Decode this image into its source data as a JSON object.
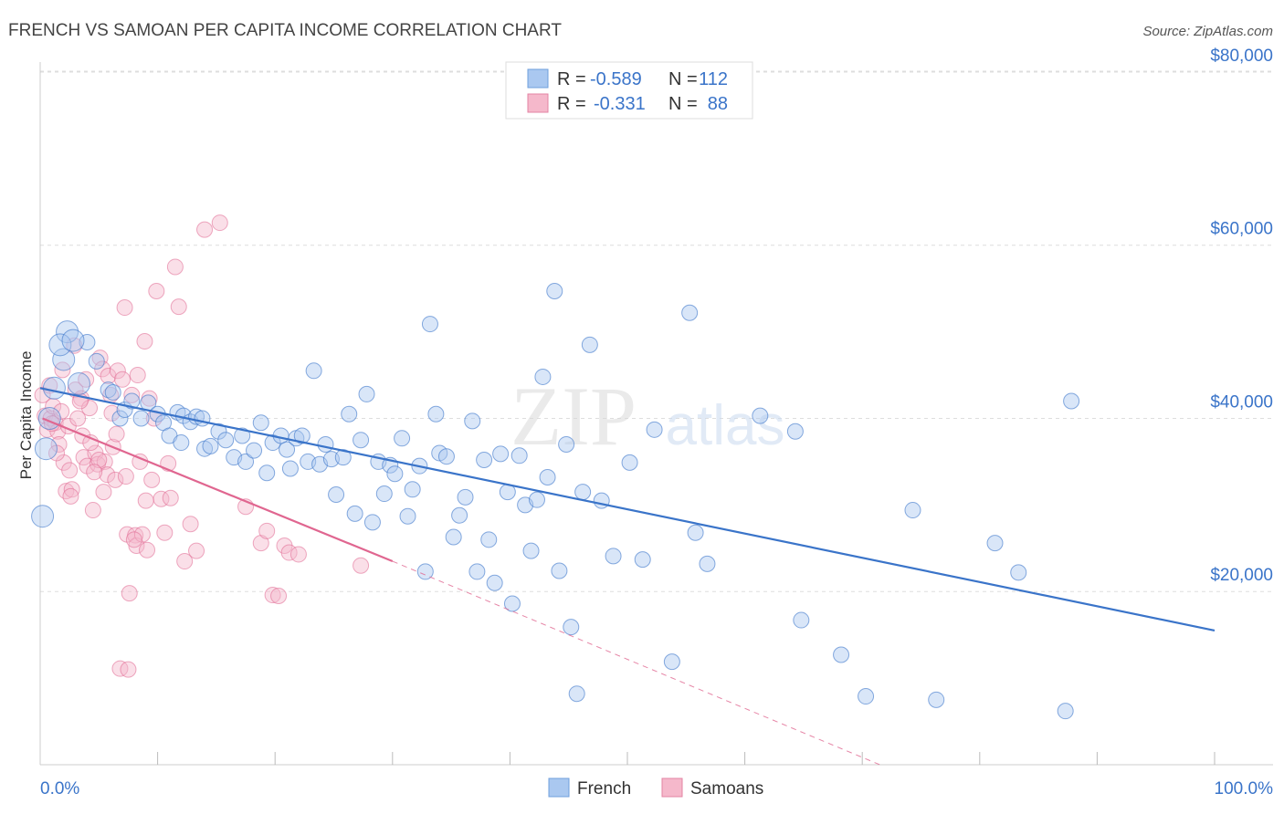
{
  "header": {
    "title": "FRENCH VS SAMOAN PER CAPITA INCOME CORRELATION CHART",
    "source": "Source: ZipAtlas.com"
  },
  "watermark": {
    "zip": "ZIP",
    "atlas": "atlas"
  },
  "legend_top": {
    "rows": [
      {
        "r_label": "R =",
        "r_value": "-0.589",
        "n_label": "N =",
        "n_value": "112",
        "color": "#aac8f0"
      },
      {
        "r_label": "R =",
        "r_value": "-0.331",
        "n_label": "N =",
        "n_value": "88",
        "color": "#f5b8cb"
      }
    ]
  },
  "legend_bottom": {
    "french": "French",
    "samoans": "Samoans"
  },
  "chart_data": {
    "type": "scatter",
    "title": "FRENCH VS SAMOAN PER CAPITA INCOME CORRELATION CHART",
    "ylabel": "Per Capita Income",
    "xlabel": "",
    "x_tick_labels": [
      "0.0%",
      "100.0%"
    ],
    "y_tick_labels": [
      "$20,000",
      "$40,000",
      "$60,000",
      "$80,000"
    ],
    "y_ticks": [
      20000,
      40000,
      60000,
      80000
    ],
    "xlim": [
      0,
      100
    ],
    "ylim": [
      0,
      82000
    ],
    "grid": true,
    "legend_position": "top-center",
    "colors": {
      "french": "#3a74c9",
      "samoans": "#e06690",
      "french_fill": "#aac8f0",
      "samoans_fill": "#f5b8cb"
    },
    "series": [
      {
        "name": "French",
        "r": -0.589,
        "n": 112,
        "trend": {
          "x": [
            0,
            100
          ],
          "y": [
            43500,
            15500
          ]
        },
        "points": [
          [
            0.2,
            28700
          ],
          [
            0.5,
            36500
          ],
          [
            0.8,
            40000
          ],
          [
            1.2,
            43500
          ],
          [
            2.0,
            46800
          ],
          [
            2.3,
            50000
          ],
          [
            1.7,
            48500
          ],
          [
            4.0,
            48800
          ],
          [
            4.8,
            46600
          ],
          [
            5.8,
            43300
          ],
          [
            6.2,
            43000
          ],
          [
            6.8,
            40000
          ],
          [
            7.2,
            41000
          ],
          [
            7.8,
            42000
          ],
          [
            8.6,
            40000
          ],
          [
            9.2,
            41800
          ],
          [
            10.0,
            40500
          ],
          [
            10.5,
            39500
          ],
          [
            11.0,
            38000
          ],
          [
            11.7,
            40700
          ],
          [
            12.2,
            40300
          ],
          [
            12.8,
            39600
          ],
          [
            12.0,
            37200
          ],
          [
            13.3,
            40200
          ],
          [
            13.8,
            40000
          ],
          [
            14.0,
            36500
          ],
          [
            14.5,
            36800
          ],
          [
            15.2,
            38500
          ],
          [
            15.8,
            37500
          ],
          [
            16.5,
            35500
          ],
          [
            17.2,
            38000
          ],
          [
            17.5,
            35000
          ],
          [
            18.2,
            36300
          ],
          [
            18.8,
            39500
          ],
          [
            19.3,
            33700
          ],
          [
            19.8,
            37200
          ],
          [
            20.5,
            38000
          ],
          [
            21.0,
            36400
          ],
          [
            21.3,
            34200
          ],
          [
            21.8,
            37700
          ],
          [
            22.3,
            38000
          ],
          [
            22.8,
            35000
          ],
          [
            23.3,
            45500
          ],
          [
            23.8,
            34700
          ],
          [
            24.3,
            37000
          ],
          [
            24.8,
            35300
          ],
          [
            25.2,
            31200
          ],
          [
            25.8,
            35500
          ],
          [
            26.3,
            40500
          ],
          [
            26.8,
            29000
          ],
          [
            27.3,
            37500
          ],
          [
            27.8,
            42800
          ],
          [
            28.3,
            28000
          ],
          [
            28.8,
            35000
          ],
          [
            29.3,
            31300
          ],
          [
            29.8,
            34600
          ],
          [
            30.2,
            33600
          ],
          [
            30.8,
            37700
          ],
          [
            31.3,
            28700
          ],
          [
            31.7,
            31800
          ],
          [
            32.3,
            34500
          ],
          [
            32.8,
            22300
          ],
          [
            33.2,
            50900
          ],
          [
            33.7,
            40500
          ],
          [
            34.0,
            36000
          ],
          [
            34.6,
            35600
          ],
          [
            35.2,
            26300
          ],
          [
            35.7,
            28800
          ],
          [
            36.2,
            30900
          ],
          [
            36.8,
            39700
          ],
          [
            37.2,
            22300
          ],
          [
            37.8,
            35200
          ],
          [
            38.2,
            26000
          ],
          [
            38.7,
            21000
          ],
          [
            39.2,
            35900
          ],
          [
            39.8,
            31500
          ],
          [
            40.2,
            18600
          ],
          [
            40.8,
            35700
          ],
          [
            41.3,
            30000
          ],
          [
            41.8,
            24700
          ],
          [
            42.3,
            30600
          ],
          [
            42.8,
            44800
          ],
          [
            43.2,
            33200
          ],
          [
            43.8,
            54700
          ],
          [
            44.2,
            22400
          ],
          [
            44.8,
            37000
          ],
          [
            45.2,
            15900
          ],
          [
            45.7,
            8200
          ],
          [
            46.2,
            31500
          ],
          [
            46.8,
            48500
          ],
          [
            47.8,
            30500
          ],
          [
            48.8,
            24100
          ],
          [
            50.2,
            34900
          ],
          [
            51.3,
            23700
          ],
          [
            52.3,
            38700
          ],
          [
            53.8,
            11900
          ],
          [
            55.3,
            52200
          ],
          [
            55.8,
            26800
          ],
          [
            56.8,
            23200
          ],
          [
            61.3,
            40300
          ],
          [
            64.3,
            38500
          ],
          [
            64.8,
            16700
          ],
          [
            68.2,
            12700
          ],
          [
            70.3,
            7900
          ],
          [
            74.3,
            29400
          ],
          [
            76.3,
            7500
          ],
          [
            81.3,
            25600
          ],
          [
            83.3,
            22200
          ],
          [
            87.3,
            6200
          ],
          [
            87.8,
            42000
          ],
          [
            2.8,
            49000
          ],
          [
            3.3,
            44000
          ]
        ]
      },
      {
        "name": "Samoans",
        "r": -0.331,
        "n": 88,
        "trend_solid": {
          "x": [
            0.2,
            30.0
          ],
          "y": [
            40000,
            23500
          ]
        },
        "trend_dashed": {
          "x": [
            30.0,
            71.5
          ],
          "y": [
            23500,
            0
          ]
        },
        "points": [
          [
            0.2,
            42700
          ],
          [
            0.4,
            40300
          ],
          [
            0.6,
            38700
          ],
          [
            0.9,
            40000
          ],
          [
            1.1,
            41400
          ],
          [
            1.3,
            39500
          ],
          [
            1.5,
            38500
          ],
          [
            1.6,
            37000
          ],
          [
            1.8,
            40800
          ],
          [
            2.0,
            34900
          ],
          [
            2.2,
            31600
          ],
          [
            2.4,
            39100
          ],
          [
            2.7,
            31800
          ],
          [
            2.9,
            48400
          ],
          [
            3.0,
            43300
          ],
          [
            3.2,
            40000
          ],
          [
            3.5,
            42300
          ],
          [
            3.7,
            35500
          ],
          [
            3.9,
            44500
          ],
          [
            4.0,
            34500
          ],
          [
            4.2,
            41200
          ],
          [
            4.5,
            29400
          ],
          [
            4.7,
            36000
          ],
          [
            4.9,
            34700
          ],
          [
            5.1,
            47000
          ],
          [
            5.3,
            45700
          ],
          [
            5.5,
            35000
          ],
          [
            5.7,
            33500
          ],
          [
            5.8,
            44900
          ],
          [
            6.0,
            42700
          ],
          [
            6.2,
            36700
          ],
          [
            6.4,
            32900
          ],
          [
            6.6,
            45500
          ],
          [
            6.8,
            11100
          ],
          [
            7.0,
            44500
          ],
          [
            7.2,
            52800
          ],
          [
            7.3,
            33300
          ],
          [
            7.4,
            26600
          ],
          [
            7.5,
            11000
          ],
          [
            7.6,
            19800
          ],
          [
            7.8,
            42700
          ],
          [
            8.1,
            26500
          ],
          [
            8.2,
            25300
          ],
          [
            8.3,
            45000
          ],
          [
            8.5,
            35000
          ],
          [
            8.7,
            26600
          ],
          [
            8.9,
            48900
          ],
          [
            9.1,
            24800
          ],
          [
            9.3,
            42300
          ],
          [
            9.5,
            32900
          ],
          [
            9.7,
            40000
          ],
          [
            9.9,
            54700
          ],
          [
            10.3,
            30700
          ],
          [
            10.6,
            26800
          ],
          [
            10.9,
            34800
          ],
          [
            11.1,
            30800
          ],
          [
            11.5,
            57500
          ],
          [
            11.8,
            52900
          ],
          [
            12.3,
            23500
          ],
          [
            12.8,
            27800
          ],
          [
            13.3,
            24700
          ],
          [
            14.0,
            61800
          ],
          [
            15.3,
            62600
          ],
          [
            17.5,
            29800
          ],
          [
            18.8,
            25600
          ],
          [
            19.3,
            27000
          ],
          [
            19.8,
            19600
          ],
          [
            20.3,
            19500
          ],
          [
            20.8,
            25300
          ],
          [
            21.2,
            24500
          ],
          [
            22.0,
            24300
          ],
          [
            27.3,
            23000
          ],
          [
            1.0,
            39400
          ],
          [
            1.4,
            36000
          ],
          [
            2.5,
            34000
          ],
          [
            3.6,
            38000
          ],
          [
            4.3,
            37200
          ],
          [
            5.4,
            31500
          ],
          [
            6.1,
            40600
          ],
          [
            8.0,
            26000
          ],
          [
            0.8,
            43800
          ],
          [
            1.9,
            45600
          ],
          [
            3.4,
            42000
          ],
          [
            5.0,
            35200
          ],
          [
            6.5,
            38200
          ],
          [
            9.0,
            30500
          ],
          [
            2.6,
            31000
          ],
          [
            4.6,
            33800
          ]
        ]
      }
    ]
  }
}
